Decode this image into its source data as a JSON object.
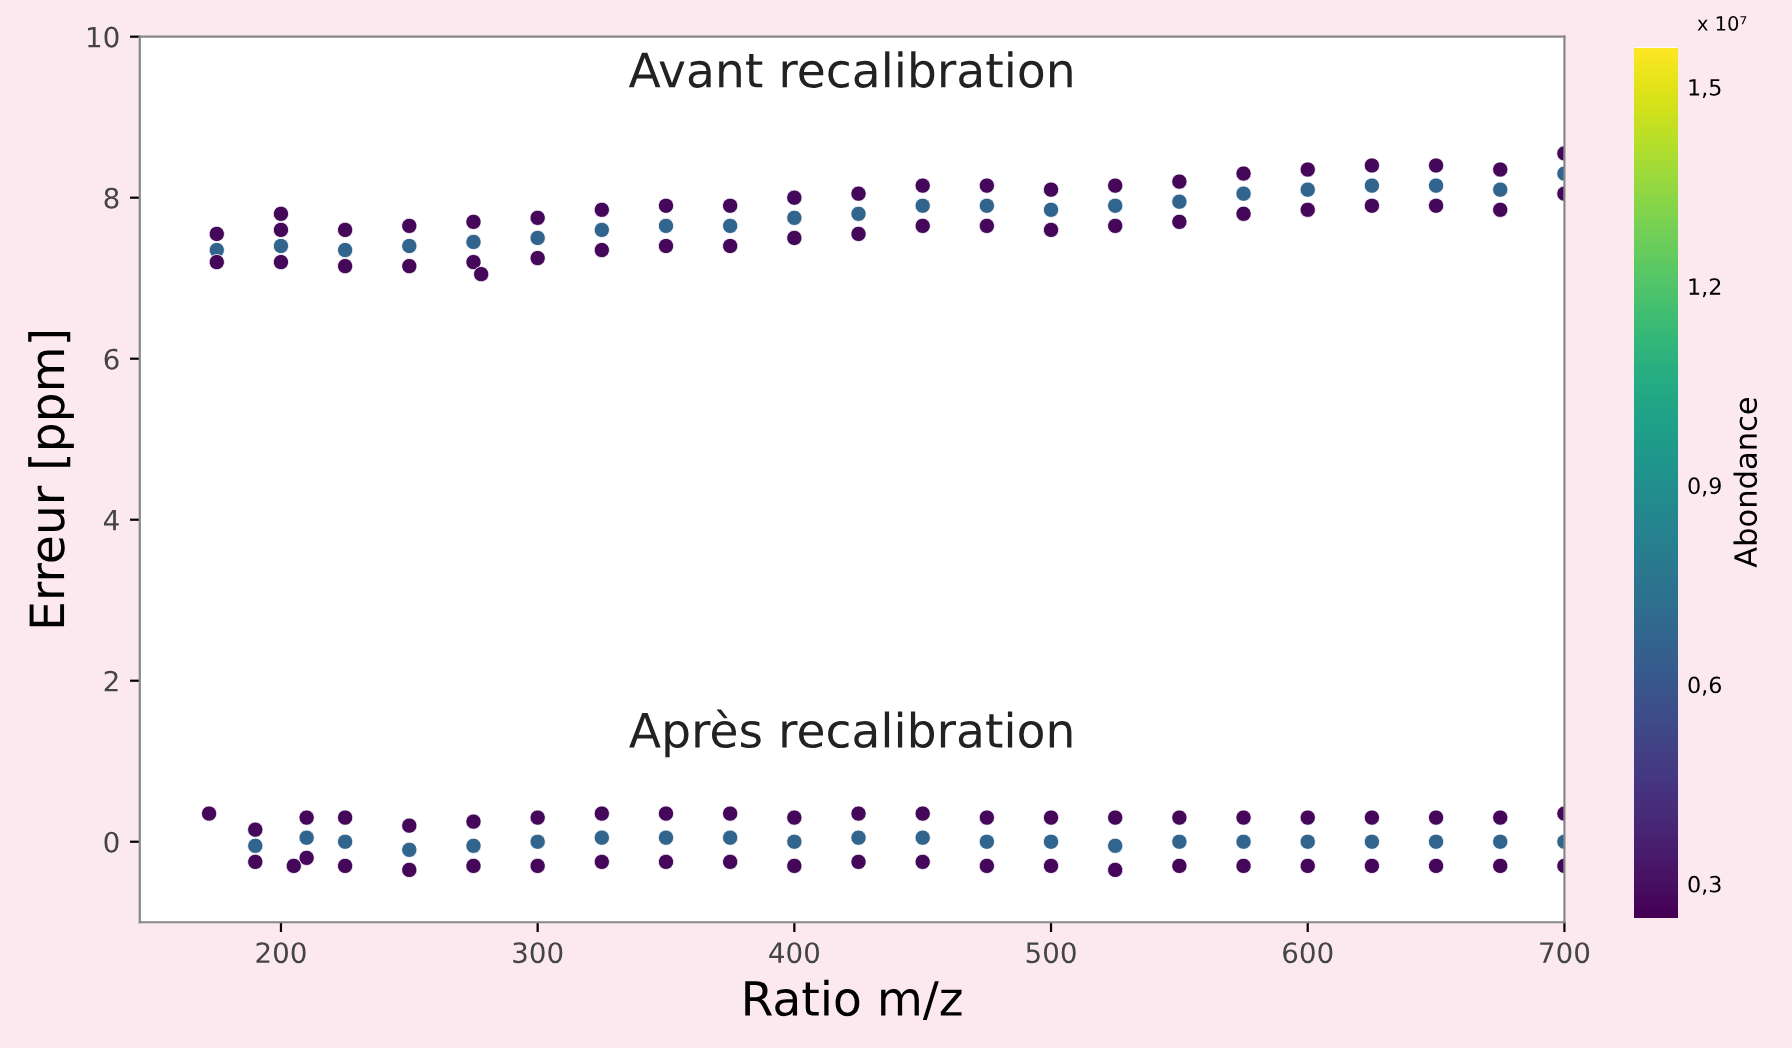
{
  "chart_data": {
    "type": "scatter",
    "xlabel": "Ratio m/z",
    "ylabel": "Erreur [ppm]",
    "clabel": "Abondance",
    "xlim": [
      145,
      700
    ],
    "xticks": [
      200,
      300,
      400,
      500,
      600,
      700
    ],
    "ylim": [
      -1,
      10
    ],
    "yticks": [
      0,
      2,
      4,
      6,
      8,
      10
    ],
    "clim": [
      0.25,
      1.56
    ],
    "cticks": [
      {
        "value": 0.3,
        "label": "0,3"
      },
      {
        "value": 0.6,
        "label": "0,6"
      },
      {
        "value": 0.9,
        "label": "0,9"
      },
      {
        "value": 1.2,
        "label": "1,2"
      },
      {
        "value": 1.5,
        "label": "1,5"
      }
    ],
    "grid": false,
    "marker": "circle",
    "annotations": [
      "x 10⁷"
    ],
    "series": [
      {
        "name": "Avant recalibration",
        "x": [
          175,
          175,
          175,
          200,
          200,
          200,
          225,
          225,
          225,
          250,
          250,
          250,
          275,
          275,
          275,
          300,
          300,
          300,
          325,
          325,
          325,
          350,
          350,
          350,
          375,
          375,
          375,
          400,
          400,
          400,
          425,
          425,
          425,
          450,
          450,
          450,
          475,
          475,
          475,
          500,
          500,
          500,
          525,
          525,
          525,
          550,
          550,
          550,
          575,
          575,
          575,
          600,
          600,
          600,
          625,
          625,
          625,
          650,
          650,
          650,
          675,
          675,
          675,
          700,
          700,
          700,
          200,
          278
        ],
        "values": [
          7.55,
          7.35,
          7.2,
          7.6,
          7.4,
          7.2,
          7.6,
          7.35,
          7.15,
          7.65,
          7.4,
          7.15,
          7.7,
          7.45,
          7.2,
          7.75,
          7.5,
          7.25,
          7.85,
          7.6,
          7.35,
          7.9,
          7.65,
          7.4,
          7.9,
          7.65,
          7.4,
          8.0,
          7.75,
          7.5,
          8.05,
          7.8,
          7.55,
          8.15,
          7.9,
          7.65,
          8.15,
          7.9,
          7.65,
          8.1,
          7.85,
          7.6,
          8.15,
          7.9,
          7.65,
          8.2,
          7.95,
          7.7,
          8.3,
          8.05,
          7.8,
          8.35,
          8.1,
          7.85,
          8.4,
          8.15,
          7.9,
          8.4,
          8.15,
          7.9,
          8.35,
          8.1,
          7.85,
          8.55,
          8.3,
          8.05,
          7.8,
          7.05
        ],
        "colors": [
          "#45075a",
          "#32658e",
          "#45075a",
          "#45075a",
          "#32658e",
          "#45075a",
          "#45075a",
          "#32658e",
          "#45075a",
          "#45075a",
          "#32658e",
          "#45075a",
          "#45075a",
          "#32658e",
          "#45075a",
          "#45075a",
          "#32658e",
          "#45075a",
          "#45075a",
          "#32658e",
          "#45075a",
          "#45075a",
          "#32658e",
          "#45075a",
          "#45075a",
          "#32658e",
          "#45075a",
          "#45075a",
          "#32658e",
          "#45075a",
          "#45075a",
          "#32658e",
          "#45075a",
          "#45075a",
          "#32658e",
          "#45075a",
          "#45075a",
          "#32658e",
          "#45075a",
          "#45075a",
          "#32658e",
          "#45075a",
          "#45075a",
          "#32658e",
          "#45075a",
          "#45075a",
          "#32658e",
          "#45075a",
          "#45075a",
          "#32658e",
          "#45075a",
          "#45075a",
          "#32658e",
          "#45075a",
          "#45075a",
          "#32658e",
          "#45075a",
          "#45075a",
          "#32658e",
          "#45075a",
          "#45075a",
          "#32658e",
          "#45075a",
          "#45075a",
          "#32658e",
          "#45075a",
          "#45075a",
          "#45075a"
        ]
      },
      {
        "name": "Après recalibration",
        "x": [
          172,
          190,
          190,
          190,
          210,
          210,
          210,
          225,
          225,
          225,
          250,
          250,
          250,
          275,
          275,
          275,
          300,
          300,
          300,
          325,
          325,
          325,
          350,
          350,
          350,
          375,
          375,
          375,
          400,
          400,
          400,
          425,
          425,
          425,
          450,
          450,
          450,
          475,
          475,
          475,
          500,
          500,
          500,
          525,
          525,
          525,
          550,
          550,
          550,
          575,
          575,
          575,
          600,
          600,
          600,
          625,
          625,
          625,
          650,
          650,
          650,
          675,
          675,
          675,
          700,
          700,
          700,
          205
        ],
        "values": [
          0.35,
          0.15,
          -0.05,
          -0.25,
          0.3,
          0.05,
          -0.2,
          0.3,
          0.0,
          -0.3,
          0.2,
          -0.1,
          -0.35,
          0.25,
          -0.05,
          -0.3,
          0.3,
          0.0,
          -0.3,
          0.35,
          0.05,
          -0.25,
          0.35,
          0.05,
          -0.25,
          0.35,
          0.05,
          -0.25,
          0.3,
          0.0,
          -0.3,
          0.35,
          0.05,
          -0.25,
          0.35,
          0.05,
          -0.25,
          0.3,
          0.0,
          -0.3,
          0.3,
          0.0,
          -0.3,
          0.3,
          -0.05,
          -0.35,
          0.3,
          0.0,
          -0.3,
          0.3,
          0.0,
          -0.3,
          0.3,
          0.0,
          -0.3,
          0.3,
          0.0,
          -0.3,
          0.3,
          0.0,
          -0.3,
          0.3,
          0.0,
          -0.3,
          0.35,
          0.0,
          -0.3,
          -0.3
        ],
        "colors": [
          "#45075a",
          "#45075a",
          "#32658e",
          "#45075a",
          "#45075a",
          "#32658e",
          "#45075a",
          "#45075a",
          "#32658e",
          "#45075a",
          "#45075a",
          "#32658e",
          "#45075a",
          "#45075a",
          "#32658e",
          "#45075a",
          "#45075a",
          "#32658e",
          "#45075a",
          "#45075a",
          "#32658e",
          "#45075a",
          "#45075a",
          "#32658e",
          "#45075a",
          "#45075a",
          "#32658e",
          "#45075a",
          "#45075a",
          "#32658e",
          "#45075a",
          "#45075a",
          "#32658e",
          "#45075a",
          "#45075a",
          "#32658e",
          "#45075a",
          "#45075a",
          "#32658e",
          "#45075a",
          "#45075a",
          "#32658e",
          "#45075a",
          "#45075a",
          "#32658e",
          "#45075a",
          "#45075a",
          "#32658e",
          "#45075a",
          "#45075a",
          "#32658e",
          "#45075a",
          "#45075a",
          "#32658e",
          "#45075a",
          "#45075a",
          "#32658e",
          "#45075a",
          "#45075a",
          "#32658e",
          "#45075a",
          "#45075a",
          "#32658e",
          "#45075a",
          "#45075a",
          "#32658e",
          "#45075a",
          "#45075a"
        ]
      }
    ]
  }
}
